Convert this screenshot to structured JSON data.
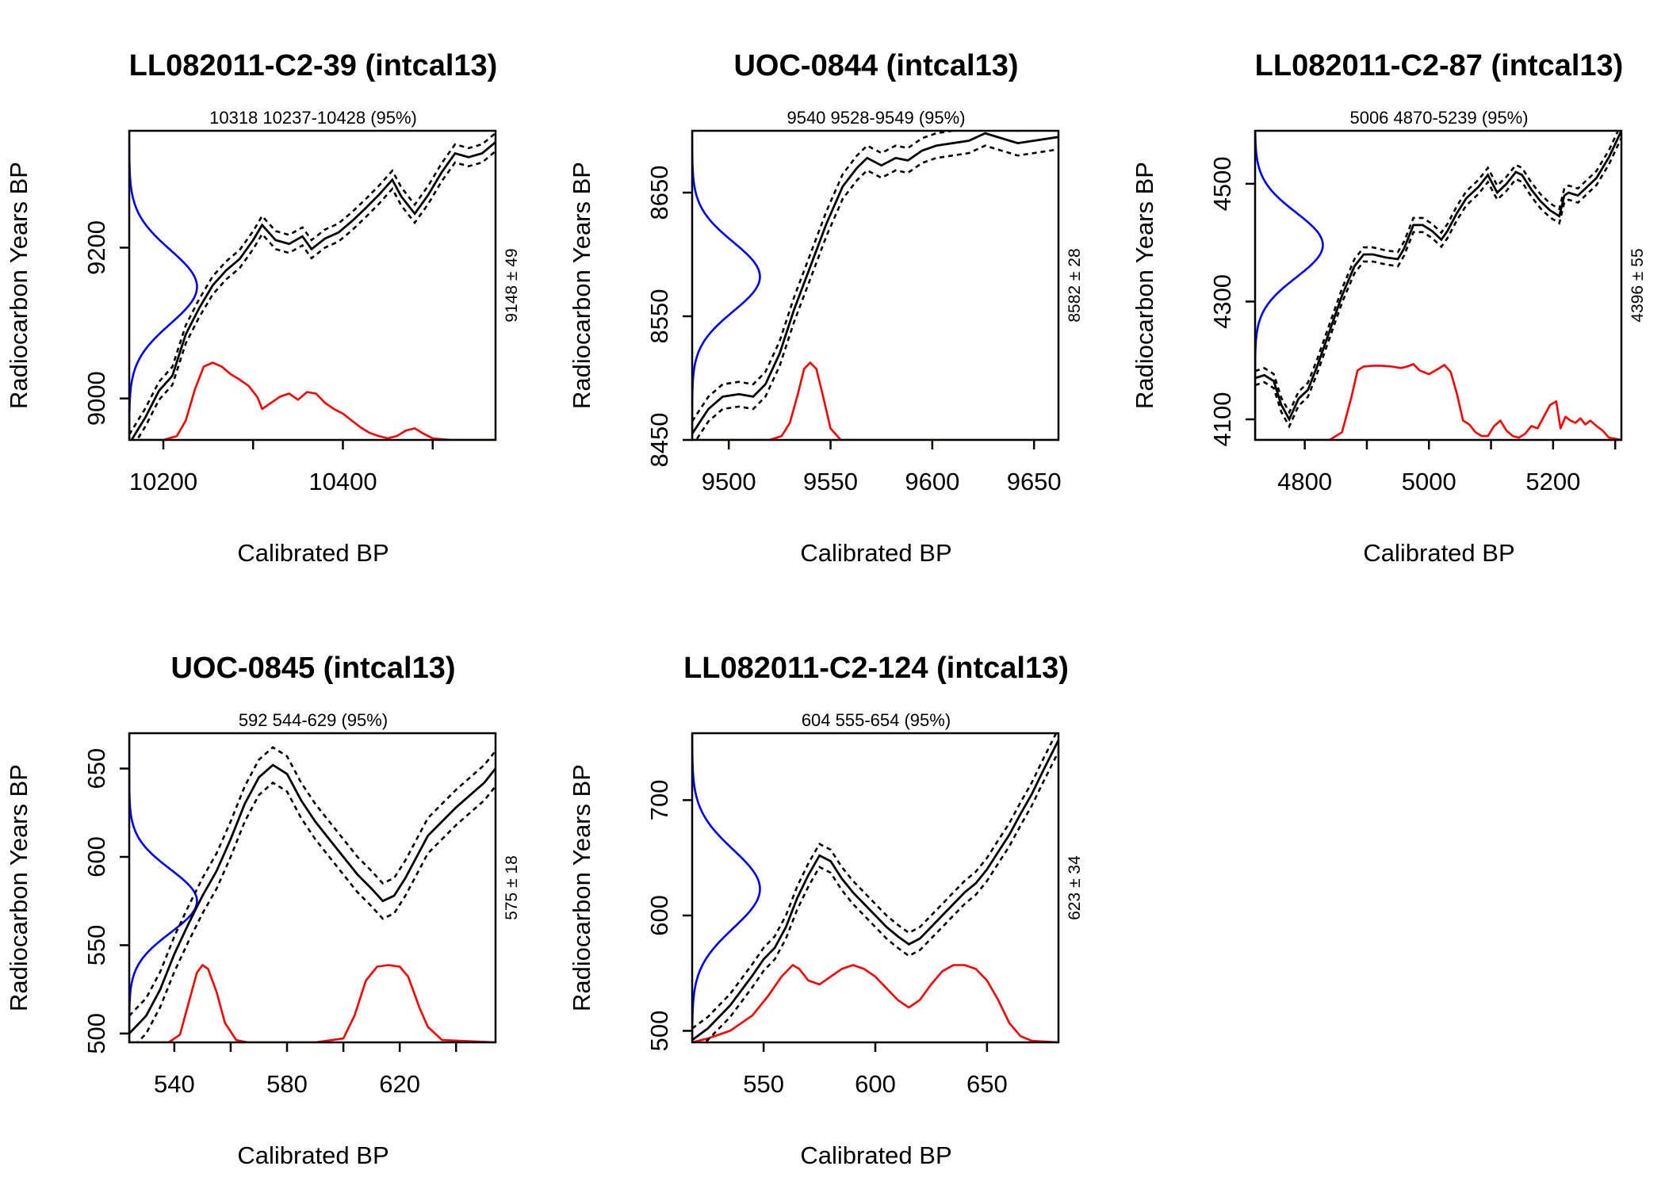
{
  "figure": {
    "background": "#ffffff",
    "curve_color": "#000000",
    "sample_color": "#0000ff",
    "calibrated_color": "#ff0000"
  },
  "chart_data": [
    {
      "type": "line",
      "title": "LL082011-C2-39 (intcal13)",
      "subtitle": "10318 10237-10428 (95%)",
      "xlabel": "Calibrated BP",
      "ylabel": "Radiocarbon Years BP",
      "right_label": "9148 ± 49",
      "xlim": [
        10162,
        10570
      ],
      "ylim": [
        8945,
        9355
      ],
      "xticks": [
        10200,
        10300,
        10400,
        10500
      ],
      "xtick_labels": [
        "10200",
        "",
        "10400",
        ""
      ],
      "yticks": [
        9000,
        9200
      ],
      "ytick_labels": [
        "9000",
        "9200"
      ],
      "measurement": {
        "mean": 9148,
        "sd": 49
      },
      "curve": {
        "x": [
          10162,
          10180,
          10195,
          10210,
          10225,
          10240,
          10255,
          10270,
          10285,
          10300,
          10310,
          10325,
          10340,
          10355,
          10365,
          10380,
          10395,
          10410,
          10425,
          10440,
          10455,
          10465,
          10480,
          10495,
          10510,
          10525,
          10540,
          10555,
          10570
        ],
        "y": [
          8940,
          8975,
          9010,
          9030,
          9085,
          9120,
          9150,
          9170,
          9185,
          9210,
          9230,
          9210,
          9205,
          9215,
          9198,
          9212,
          9220,
          9235,
          9252,
          9270,
          9290,
          9268,
          9245,
          9270,
          9300,
          9325,
          9320,
          9325,
          9340
        ],
        "sigma": 12
      },
      "calibrated": {
        "x": [
          10170,
          10200,
          10215,
          10225,
          10235,
          10245,
          10255,
          10265,
          10275,
          10285,
          10295,
          10305,
          10310,
          10320,
          10330,
          10340,
          10350,
          10360,
          10370,
          10380,
          10390,
          10400,
          10410,
          10420,
          10430,
          10440,
          10450,
          10460,
          10470,
          10480,
          10490,
          10500,
          10520,
          10570
        ],
        "y": [
          0,
          0,
          0.05,
          0.25,
          0.65,
          0.95,
          1.0,
          0.95,
          0.85,
          0.78,
          0.7,
          0.55,
          0.4,
          0.48,
          0.56,
          0.6,
          0.52,
          0.62,
          0.6,
          0.48,
          0.4,
          0.34,
          0.25,
          0.16,
          0.09,
          0.05,
          0.02,
          0.05,
          0.12,
          0.15,
          0.08,
          0.02,
          0,
          0
        ]
      }
    },
    {
      "type": "line",
      "title": "UOC-0844 (intcal13)",
      "subtitle": "9540 9528-9549 (95%)",
      "xlabel": "Calibrated BP",
      "ylabel": "Radiocarbon Years BP",
      "right_label": "8582 ± 28",
      "xlim": [
        9482,
        9662
      ],
      "ylim": [
        8450,
        8700
      ],
      "xticks": [
        9500,
        9550,
        9600,
        9650
      ],
      "xtick_labels": [
        "9500",
        "9550",
        "9600",
        "9650"
      ],
      "yticks": [
        8450,
        8550,
        8650
      ],
      "ytick_labels": [
        "8450",
        "8550",
        "8650"
      ],
      "measurement": {
        "mean": 8582,
        "sd": 28
      },
      "curve": {
        "x": [
          9482,
          9490,
          9497,
          9505,
          9512,
          9518,
          9525,
          9532,
          9540,
          9548,
          9556,
          9563,
          9568,
          9575,
          9582,
          9588,
          9595,
          9602,
          9610,
          9618,
          9626,
          9634,
          9642,
          9650,
          9662
        ],
        "y": [
          8455,
          8475,
          8485,
          8487,
          8485,
          8495,
          8520,
          8555,
          8590,
          8625,
          8655,
          8670,
          8678,
          8672,
          8678,
          8676,
          8684,
          8688,
          8690,
          8692,
          8698,
          8694,
          8690,
          8692,
          8695
        ],
        "sigma": 10
      },
      "calibrated": {
        "x": [
          9482,
          9520,
          9526,
          9530,
          9534,
          9537,
          9540,
          9543,
          9546,
          9550,
          9555,
          9662
        ],
        "y": [
          0,
          0,
          0.05,
          0.22,
          0.6,
          0.92,
          1.0,
          0.92,
          0.6,
          0.15,
          0,
          0
        ]
      }
    },
    {
      "type": "line",
      "title": "LL082011-C2-87 (intcal13)",
      "subtitle": "5006 4870-5239 (95%)",
      "xlabel": "Calibrated BP",
      "ylabel": "Radiocarbon Years BP",
      "right_label": "4396 ± 55",
      "xlim": [
        4720,
        5310
      ],
      "ylim": [
        4065,
        4590
      ],
      "xticks": [
        4800,
        4900,
        5000,
        5100,
        5200,
        5300
      ],
      "xtick_labels": [
        "4800",
        "",
        "5000",
        "",
        "5200",
        ""
      ],
      "yticks": [
        4100,
        4300,
        4500
      ],
      "ytick_labels": [
        "4100",
        "4300",
        "4500"
      ],
      "measurement": {
        "mean": 4396,
        "sd": 55
      },
      "curve": {
        "x": [
          4720,
          4735,
          4750,
          4762,
          4775,
          4790,
          4805,
          4820,
          4840,
          4860,
          4880,
          4895,
          4910,
          4930,
          4950,
          4960,
          4975,
          4990,
          5005,
          5020,
          5030,
          5045,
          5060,
          5080,
          5095,
          5110,
          5125,
          5140,
          5150,
          5165,
          5180,
          5195,
          5210,
          5218,
          5225,
          5240,
          5255,
          5270,
          5290,
          5310
        ],
        "y": [
          4170,
          4175,
          4165,
          4125,
          4100,
          4135,
          4150,
          4190,
          4250,
          4310,
          4360,
          4380,
          4380,
          4375,
          4372,
          4390,
          4430,
          4430,
          4420,
          4405,
          4420,
          4450,
          4475,
          4495,
          4515,
          4485,
          4500,
          4520,
          4515,
          4490,
          4470,
          4455,
          4445,
          4480,
          4485,
          4480,
          4495,
          4510,
          4545,
          4590
        ],
        "sigma": 12
      },
      "calibrated": {
        "x": [
          4720,
          4840,
          4860,
          4875,
          4885,
          4895,
          4910,
          4925,
          4940,
          4955,
          4965,
          4975,
          4985,
          5000,
          5015,
          5025,
          5035,
          5045,
          5055,
          5065,
          5075,
          5085,
          5095,
          5105,
          5115,
          5125,
          5135,
          5145,
          5155,
          5165,
          5175,
          5185,
          5195,
          5205,
          5212,
          5220,
          5228,
          5236,
          5244,
          5252,
          5260,
          5270,
          5280,
          5290,
          5310
        ],
        "y": [
          0,
          0,
          0.1,
          0.55,
          0.9,
          0.95,
          0.96,
          0.96,
          0.95,
          0.93,
          0.95,
          0.98,
          0.9,
          0.85,
          0.92,
          0.97,
          0.88,
          0.6,
          0.25,
          0.2,
          0.1,
          0.05,
          0.05,
          0.18,
          0.25,
          0.12,
          0.05,
          0.03,
          0.08,
          0.18,
          0.15,
          0.3,
          0.45,
          0.5,
          0.15,
          0.3,
          0.25,
          0.22,
          0.28,
          0.2,
          0.25,
          0.18,
          0.12,
          0.03,
          0
        ]
      }
    },
    {
      "type": "line",
      "title": "UOC-0845 (intcal13)",
      "subtitle": "592 544-629 (95%)",
      "xlabel": "Calibrated BP",
      "ylabel": "Radiocarbon Years BP",
      "right_label": "575 ± 18",
      "xlim": [
        524,
        654
      ],
      "ylim": [
        495,
        670
      ],
      "xticks": [
        540,
        560,
        580,
        600,
        620,
        640
      ],
      "xtick_labels": [
        "540",
        "",
        "580",
        "",
        "620",
        ""
      ],
      "yticks": [
        500,
        550,
        600,
        650
      ],
      "ytick_labels": [
        "500",
        "550",
        "600",
        "650"
      ],
      "measurement": {
        "mean": 575,
        "sd": 18
      },
      "curve": {
        "x": [
          524,
          530,
          535,
          540,
          545,
          550,
          555,
          560,
          565,
          570,
          575,
          580,
          585,
          590,
          595,
          600,
          605,
          610,
          614,
          618,
          622,
          626,
          630,
          635,
          640,
          645,
          650,
          654
        ],
        "y": [
          500,
          510,
          525,
          545,
          562,
          578,
          592,
          610,
          630,
          645,
          652,
          647,
          632,
          620,
          610,
          600,
          590,
          582,
          575,
          578,
          588,
          600,
          612,
          620,
          628,
          635,
          642,
          650
        ],
        "sigma": 10
      },
      "calibrated": {
        "x": [
          524,
          538,
          542,
          545,
          548,
          550,
          552,
          555,
          558,
          562,
          566,
          590,
          600,
          604,
          608,
          612,
          616,
          620,
          623,
          627,
          630,
          635,
          654
        ],
        "y": [
          0,
          0,
          0.1,
          0.5,
          0.9,
          1.0,
          0.95,
          0.65,
          0.25,
          0.03,
          0,
          0,
          0.05,
          0.35,
          0.8,
          0.98,
          1.0,
          0.98,
          0.85,
          0.45,
          0.2,
          0.03,
          0
        ]
      }
    },
    {
      "type": "line",
      "title": "LL082011-C2-124 (intcal13)",
      "subtitle": "604 555-654 (95%)",
      "xlabel": "Calibrated BP",
      "ylabel": "Radiocarbon Years BP",
      "right_label": "623 ± 34",
      "xlim": [
        518,
        682
      ],
      "ylim": [
        490,
        758
      ],
      "xticks": [
        550,
        600,
        650
      ],
      "xtick_labels": [
        "550",
        "600",
        "650"
      ],
      "yticks": [
        500,
        600,
        700
      ],
      "ytick_labels": [
        "500",
        "600",
        "700"
      ],
      "measurement": {
        "mean": 623,
        "sd": 34
      },
      "curve": {
        "x": [
          518,
          525,
          530,
          535,
          540,
          545,
          550,
          555,
          560,
          565,
          570,
          575,
          580,
          585,
          590,
          595,
          600,
          605,
          610,
          615,
          620,
          625,
          630,
          635,
          640,
          645,
          650,
          655,
          660,
          665,
          670,
          675,
          682
        ],
        "y": [
          492,
          502,
          512,
          522,
          535,
          548,
          562,
          572,
          590,
          615,
          635,
          652,
          647,
          632,
          620,
          610,
          600,
          590,
          582,
          575,
          580,
          590,
          600,
          610,
          620,
          628,
          640,
          655,
          670,
          688,
          705,
          725,
          752
        ],
        "sigma": 10
      },
      "calibrated": {
        "x": [
          518,
          525,
          535,
          545,
          552,
          558,
          563,
          566,
          570,
          575,
          580,
          585,
          590,
          595,
          600,
          605,
          610,
          615,
          620,
          625,
          630,
          635,
          640,
          645,
          650,
          655,
          660,
          665,
          670,
          682
        ],
        "y": [
          0,
          0.05,
          0.15,
          0.35,
          0.6,
          0.85,
          1.0,
          0.95,
          0.8,
          0.75,
          0.85,
          0.95,
          1.0,
          0.95,
          0.85,
          0.7,
          0.55,
          0.45,
          0.55,
          0.75,
          0.92,
          1.0,
          1.0,
          0.95,
          0.8,
          0.55,
          0.25,
          0.08,
          0.02,
          0
        ]
      }
    }
  ]
}
